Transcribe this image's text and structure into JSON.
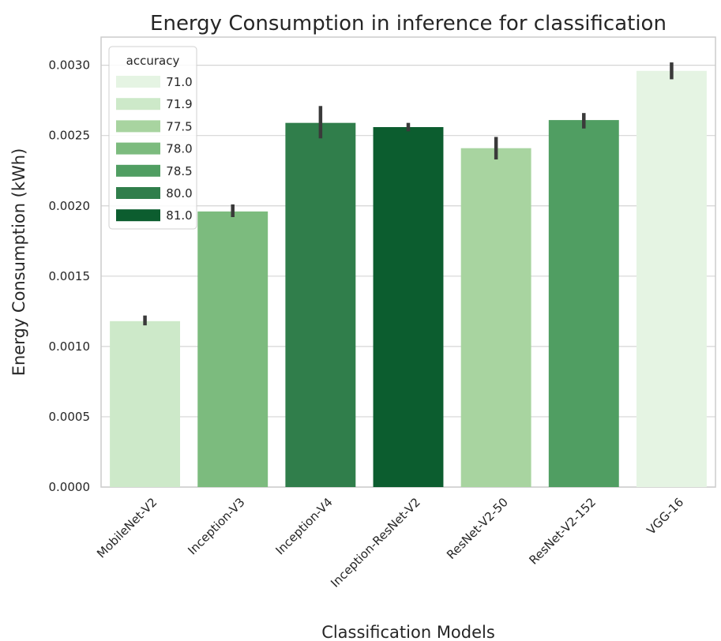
{
  "chart_data": {
    "type": "bar",
    "title": "Energy Consumption in inference for classification",
    "xlabel": "Classification Models",
    "ylabel": "Energy Consumption (kWh)",
    "ylim": [
      0,
      0.0032
    ],
    "yticks": [
      "0.0000",
      "0.0005",
      "0.0010",
      "0.0015",
      "0.0020",
      "0.0025",
      "0.0030"
    ],
    "categories": [
      "MobileNet-V2",
      "Inception-V3",
      "Inception-V4",
      "Inception-ResNet-V2",
      "ResNet-V2-50",
      "ResNet-V2-152",
      "VGG-16"
    ],
    "values": [
      0.00118,
      0.00196,
      0.00259,
      0.00256,
      0.00241,
      0.00261,
      0.00296
    ],
    "error_low": [
      0.00115,
      0.00192,
      0.00248,
      0.00253,
      0.00233,
      0.00255,
      0.0029
    ],
    "error_high": [
      0.00122,
      0.00201,
      0.00271,
      0.00259,
      0.00249,
      0.00266,
      0.00302
    ],
    "accuracy": [
      "71.9",
      "78.0",
      "80.0",
      "81.0",
      "77.5",
      "78.5",
      "71.0"
    ],
    "legend": {
      "title": "accuracy",
      "placement": "top-left",
      "entries": [
        {
          "label": "71.0",
          "color": "#e5f4e3"
        },
        {
          "label": "71.9",
          "color": "#cde9c9"
        },
        {
          "label": "77.5",
          "color": "#a8d4a0"
        },
        {
          "label": "78.0",
          "color": "#7cbb7e"
        },
        {
          "label": "78.5",
          "color": "#509e62"
        },
        {
          "label": "80.0",
          "color": "#307e4b"
        },
        {
          "label": "81.0",
          "color": "#0c5d2f"
        }
      ]
    },
    "grid": true
  }
}
